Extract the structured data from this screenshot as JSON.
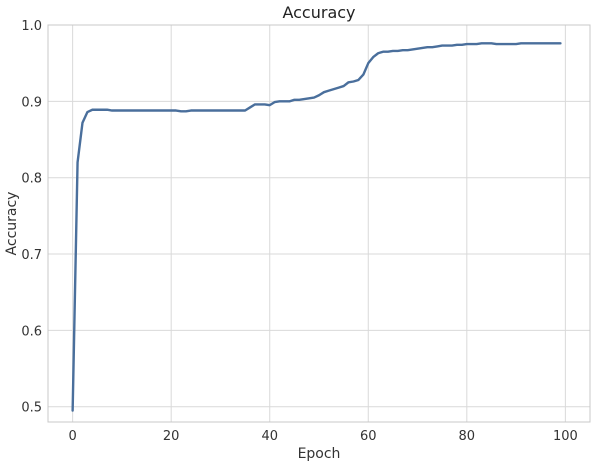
{
  "chart_data": {
    "type": "line",
    "title": "Accuracy",
    "xlabel": "Epoch",
    "ylabel": "Accuracy",
    "xlim": [
      -5,
      105
    ],
    "ylim": [
      0.48,
      1.0
    ],
    "xticks": [
      0,
      20,
      40,
      60,
      80,
      100
    ],
    "yticks": [
      0.5,
      0.6,
      0.7,
      0.8,
      0.9,
      1.0
    ],
    "xtick_labels": [
      "0",
      "20",
      "40",
      "60",
      "80",
      "100"
    ],
    "ytick_labels": [
      "0.5",
      "0.6",
      "0.7",
      "0.8",
      "0.9",
      "1.0"
    ],
    "grid": true,
    "line_color": "#4a6f9c",
    "series": [
      {
        "x": [
          0,
          1,
          2,
          3,
          4,
          5,
          6,
          7,
          8,
          9,
          10,
          11,
          12,
          13,
          14,
          15,
          16,
          17,
          18,
          19,
          20,
          21,
          22,
          23,
          24,
          25,
          26,
          27,
          28,
          29,
          30,
          31,
          32,
          33,
          34,
          35,
          36,
          37,
          38,
          39,
          40,
          41,
          42,
          43,
          44,
          45,
          46,
          47,
          48,
          49,
          50,
          51,
          52,
          53,
          54,
          55,
          56,
          57,
          58,
          59,
          60,
          61,
          62,
          63,
          64,
          65,
          66,
          67,
          68,
          69,
          70,
          71,
          72,
          73,
          74,
          75,
          76,
          77,
          78,
          79,
          80,
          81,
          82,
          83,
          84,
          85,
          86,
          87,
          88,
          89,
          90,
          91,
          92,
          93,
          94,
          95,
          96,
          97,
          98,
          99
        ],
        "values": [
          0.495,
          0.82,
          0.872,
          0.886,
          0.889,
          0.889,
          0.889,
          0.889,
          0.888,
          0.888,
          0.888,
          0.888,
          0.888,
          0.888,
          0.888,
          0.888,
          0.888,
          0.888,
          0.888,
          0.888,
          0.888,
          0.888,
          0.887,
          0.887,
          0.888,
          0.888,
          0.888,
          0.888,
          0.888,
          0.888,
          0.888,
          0.888,
          0.888,
          0.888,
          0.888,
          0.888,
          0.892,
          0.896,
          0.896,
          0.896,
          0.895,
          0.899,
          0.9,
          0.9,
          0.9,
          0.902,
          0.902,
          0.903,
          0.904,
          0.905,
          0.908,
          0.912,
          0.914,
          0.916,
          0.918,
          0.92,
          0.925,
          0.926,
          0.928,
          0.935,
          0.95,
          0.958,
          0.963,
          0.965,
          0.965,
          0.966,
          0.966,
          0.967,
          0.967,
          0.968,
          0.969,
          0.97,
          0.971,
          0.971,
          0.972,
          0.973,
          0.973,
          0.973,
          0.974,
          0.974,
          0.975,
          0.975,
          0.975,
          0.976,
          0.976,
          0.976,
          0.975,
          0.975,
          0.975,
          0.975,
          0.975,
          0.976,
          0.976,
          0.976,
          0.976,
          0.976,
          0.976,
          0.976,
          0.976,
          0.976
        ]
      }
    ]
  }
}
